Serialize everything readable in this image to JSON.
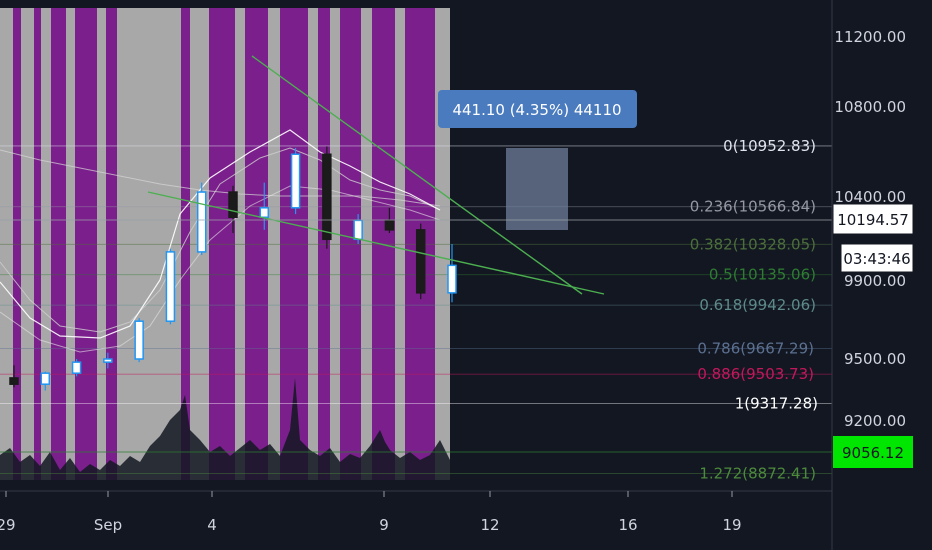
{
  "chart_data": {
    "type": "candlestick",
    "title": "",
    "xlabel": "",
    "ylabel": "",
    "ylim": [
      8900,
      11400
    ],
    "y_ticks": [
      "11200.00",
      "10800.00",
      "10400.00",
      "9900.00",
      "9500.00",
      "9200.00"
    ],
    "x_ticks": [
      "29",
      "Sep",
      "4",
      "9",
      "12",
      "16",
      "19"
    ],
    "ohlc_series": {
      "name": "",
      "candles": [
        {
          "date": "Aug 29",
          "open": 9480,
          "high": 9560,
          "low": 9420,
          "close": 9440
        },
        {
          "date": "Aug 30",
          "open": 9440,
          "high": 9520,
          "low": 9400,
          "close": 9510
        },
        {
          "date": "Aug 31",
          "open": 9510,
          "high": 9600,
          "low": 9490,
          "close": 9580
        },
        {
          "date": "Sep 1",
          "open": 9580,
          "high": 9640,
          "low": 9540,
          "close": 9600
        },
        {
          "date": "Sep 2",
          "open": 9600,
          "high": 9860,
          "low": 9580,
          "close": 9840
        },
        {
          "date": "Sep 3",
          "open": 9840,
          "high": 10300,
          "low": 9820,
          "close": 10280
        },
        {
          "date": "Sep 4",
          "open": 10280,
          "high": 10720,
          "low": 10260,
          "close": 10660
        },
        {
          "date": "Sep 5",
          "open": 10660,
          "high": 10700,
          "low": 10400,
          "close": 10500
        },
        {
          "date": "Sep 6",
          "open": 10500,
          "high": 10720,
          "low": 10420,
          "close": 10560
        },
        {
          "date": "Sep 7",
          "open": 10560,
          "high": 10940,
          "low": 10520,
          "close": 10900
        },
        {
          "date": "Sep 8",
          "open": 10900,
          "high": 10950,
          "low": 10300,
          "close": 10360
        },
        {
          "date": "Sep 9",
          "open": 10360,
          "high": 10520,
          "low": 10330,
          "close": 10480
        },
        {
          "date": "Sep 10",
          "open": 10480,
          "high": 10560,
          "low": 10400,
          "close": 10420
        },
        {
          "date": "Sep 11",
          "open": 10420,
          "high": 10460,
          "low": 9980,
          "close": 10020
        },
        {
          "date": "Sep 12",
          "open": 10020,
          "high": 10330,
          "low": 9960,
          "close": 10194.57
        }
      ]
    },
    "annotations": {
      "measure_label": "441.10 (4.35%) 44110",
      "fib_levels": [
        {
          "label": "0(10952.83)",
          "value": 10952.83,
          "color": "#e0e3eb"
        },
        {
          "label": "0.236(10566.84)",
          "value": 10566.84,
          "color": "#9598a1"
        },
        {
          "label": "0.382(10328.05)",
          "value": 10328.05,
          "color": "#4c6f3c"
        },
        {
          "label": "0.5(10135.06)",
          "value": 10135.06,
          "color": "#2e7d32"
        },
        {
          "label": "0.618(9942.06)",
          "value": 9942.06,
          "color": "#5d8a8a"
        },
        {
          "label": "0.786(9667.29)",
          "value": 9667.29,
          "color": "#5b7090"
        },
        {
          "label": "0.886(9503.73)",
          "value": 9503.73,
          "color": "#c2185b"
        },
        {
          "label": "1(9317.28)",
          "value": 9317.28,
          "color": "#ffffff"
        },
        {
          "label": "1.272(8872.41)",
          "value": 8872.41,
          "color": "#4c8a3c"
        }
      ],
      "price_tag": {
        "value": "10194.57",
        "time": "03:43:46"
      },
      "green_tag": {
        "value": "9056.12"
      }
    },
    "grid": false,
    "colors": {
      "background": "#131722",
      "purple_band": "#7b1f8c",
      "gray_band": "#a8a8a8",
      "up_candle": "#2196f3",
      "down_candle": "#131722",
      "trendline": "#4caf50",
      "tag_green": "#00e600"
    }
  }
}
